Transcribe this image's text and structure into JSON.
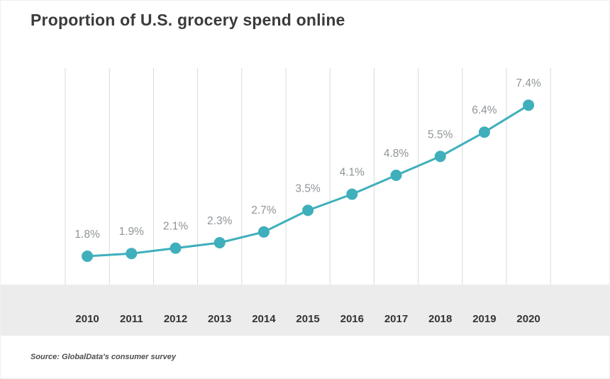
{
  "page": {
    "title": "Proportion of U.S. grocery spend online",
    "source": "Source: GlobalData's consumer survey"
  },
  "chart_data": {
    "type": "line",
    "title": "Proportion of U.S. grocery spend online",
    "categories": [
      "2010",
      "2011",
      "2012",
      "2013",
      "2014",
      "2015",
      "2016",
      "2017",
      "2018",
      "2019",
      "2020"
    ],
    "values": [
      1.8,
      1.9,
      2.1,
      2.3,
      2.7,
      3.5,
      4.1,
      4.8,
      5.5,
      6.4,
      7.4
    ],
    "value_labels": [
      "1.8%",
      "1.9%",
      "2.1%",
      "2.3%",
      "2.7%",
      "3.5%",
      "4.1%",
      "4.8%",
      "5.5%",
      "6.4%",
      "7.4%"
    ],
    "xlabel": "",
    "ylabel": "",
    "ylim": [
      1.5,
      8.0
    ],
    "grid": "vertical-only",
    "legend": "none",
    "source": "Source: GlobalData's consumer survey",
    "colors": {
      "line": "#3FAFBC",
      "point": "#3FAFBC",
      "gridline": "#D9D9D9",
      "band": "#ECECEC",
      "value_label": "#8F9497",
      "year_label": "#333333",
      "title": "#3B3B3B"
    }
  }
}
